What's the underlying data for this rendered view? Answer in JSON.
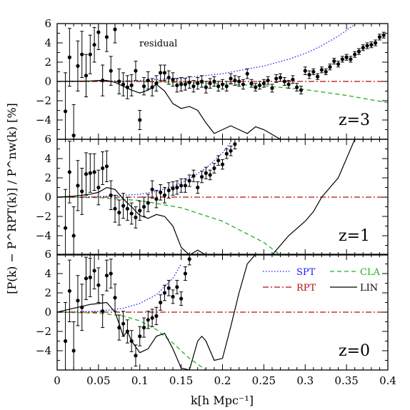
{
  "chart_data": {
    "type": "line",
    "ylabel": "[P(k) − P^RPT(k)] / P^nw(k) [%]",
    "xlabel": "k[h Mpc⁻¹]",
    "xlim": [
      0,
      0.4
    ],
    "ylim": [
      -6,
      6
    ],
    "x_ticks": [
      0,
      0.05,
      0.1,
      0.15,
      0.2,
      0.25,
      0.3,
      0.35,
      0.4
    ],
    "x_tick_labels": [
      "0",
      "0.05",
      "0.1",
      "0.15",
      "0.2",
      "0.25",
      "0.3",
      "0.35",
      "0.4"
    ],
    "y_ticks": [
      -4,
      -2,
      0,
      2,
      4,
      6
    ],
    "y_tick_labels_top": [
      "−4",
      "−2",
      "0",
      "2",
      "4",
      "6"
    ],
    "y_tick_labels": [
      "−4",
      "−2",
      "0",
      "2",
      "4"
    ],
    "annotation": "residual",
    "legend": [
      {
        "label": "SPT",
        "color": "#1a1aff",
        "style": "dotted"
      },
      {
        "label": "CLA",
        "color": "#22b022",
        "style": "dashed"
      },
      {
        "label": "RPT",
        "color": "#b01010",
        "style": "dashdot"
      },
      {
        "label": "LIN",
        "color": "#000000",
        "style": "solid"
      }
    ],
    "panels": [
      {
        "label": "z=3",
        "series": [
          {
            "name": "SPT",
            "color": "#1a1aff",
            "style": "dotted",
            "x": [
              0,
              0.05,
              0.1,
              0.15,
              0.2,
              0.25,
              0.28,
              0.3,
              0.32,
              0.34,
              0.36
            ],
            "y": [
              0,
              0.02,
              0.1,
              0.35,
              0.8,
              1.6,
              2.3,
              2.9,
              3.7,
              4.7,
              5.9
            ]
          },
          {
            "name": "CLA",
            "color": "#22b022",
            "style": "dashed",
            "x": [
              0,
              0.1,
              0.15,
              0.2,
              0.25,
              0.3,
              0.35,
              0.4
            ],
            "y": [
              0,
              -0.02,
              -0.1,
              -0.25,
              -0.45,
              -0.85,
              -1.45,
              -2.2
            ]
          },
          {
            "name": "RPT",
            "color": "#b01010",
            "style": "dashdot",
            "x": [
              0,
              0.4
            ],
            "y": [
              0,
              0
            ]
          },
          {
            "name": "LIN",
            "color": "#000000",
            "style": "solid",
            "x": [
              0,
              0.02,
              0.04,
              0.05,
              0.06,
              0.07,
              0.08,
              0.09,
              0.1,
              0.11,
              0.12,
              0.13,
              0.14,
              0.15,
              0.16,
              0.17,
              0.18,
              0.19,
              0.2,
              0.21,
              0.22,
              0.23,
              0.24,
              0.25,
              0.27,
              0.3,
              0.32
            ],
            "y": [
              0,
              0.02,
              0.05,
              0.1,
              0.1,
              -0.1,
              -0.5,
              -0.9,
              -1.2,
              -0.9,
              -0.3,
              -1.0,
              -2.3,
              -2.8,
              -2.6,
              -3.0,
              -4.3,
              -5.4,
              -5.0,
              -4.6,
              -5.0,
              -5.4,
              -4.7,
              -5.0,
              -6.0,
              -6.0,
              -6.0
            ]
          },
          {
            "name": "residual points",
            "color": "#000000",
            "style": "points",
            "x": [
              0.01,
              0.015,
              0.02,
              0.025,
              0.03,
              0.035,
              0.04,
              0.045,
              0.05,
              0.055,
              0.06,
              0.065,
              0.07,
              0.075,
              0.08,
              0.085,
              0.09,
              0.095,
              0.1,
              0.105,
              0.11,
              0.115,
              0.12,
              0.125,
              0.13,
              0.135,
              0.14,
              0.145,
              0.15,
              0.155,
              0.16,
              0.165,
              0.17,
              0.175,
              0.18,
              0.185,
              0.19,
              0.195,
              0.2,
              0.205,
              0.21,
              0.215,
              0.22,
              0.225,
              0.23,
              0.235,
              0.24,
              0.245,
              0.25,
              0.255,
              0.26,
              0.265,
              0.27,
              0.275,
              0.28,
              0.285,
              0.29,
              0.295,
              0.3,
              0.305,
              0.31,
              0.315,
              0.32,
              0.325,
              0.33,
              0.335,
              0.34,
              0.345,
              0.35,
              0.355,
              0.36,
              0.365,
              0.37,
              0.375,
              0.38,
              0.385,
              0.39,
              0.395
            ],
            "y": [
              -3.1,
              2.5,
              -5.6,
              1.6,
              2.8,
              0.6,
              2.8,
              3.8,
              5.1,
              0.1,
              4.6,
              1.1,
              5.4,
              0.0,
              -0.3,
              -0.6,
              -0.4,
              1.1,
              -4.0,
              -0.5,
              0.1,
              -0.6,
              -0.2,
              0.9,
              0.9,
              0.4,
              0.2,
              -0.4,
              -0.3,
              -0.3,
              -0.1,
              -0.5,
              -0.2,
              0.0,
              -0.6,
              -0.2,
              0.0,
              -0.5,
              -0.3,
              -0.5,
              0.3,
              0.1,
              0.0,
              -0.3,
              0.8,
              -0.2,
              -0.6,
              -0.4,
              -0.2,
              0.1,
              -0.7,
              0.3,
              0.4,
              0.0,
              -0.3,
              0.2,
              -0.6,
              -0.9,
              1.1,
              0.7,
              1.0,
              0.5,
              1.2,
              1.0,
              1.5,
              2.1,
              1.8,
              2.3,
              2.5,
              2.3,
              2.8,
              3.1,
              3.5,
              3.7,
              3.8,
              4.0,
              4.6,
              4.8
            ],
            "err": [
              4.0,
              3.0,
              3.2,
              2.6,
              2.4,
              2.2,
              2.0,
              1.8,
              1.8,
              1.6,
              1.5,
              1.5,
              1.4,
              1.3,
              1.2,
              1.2,
              1.1,
              1.0,
              1.0,
              0.9,
              0.9,
              0.9,
              0.8,
              0.8,
              0.8,
              0.7,
              0.7,
              0.7,
              0.7,
              0.6,
              0.6,
              0.6,
              0.6,
              0.6,
              0.6,
              0.5,
              0.5,
              0.5,
              0.5,
              0.5,
              0.5,
              0.5,
              0.5,
              0.5,
              0.5,
              0.4,
              0.4,
              0.4,
              0.4,
              0.4,
              0.4,
              0.4,
              0.4,
              0.4,
              0.4,
              0.4,
              0.4,
              0.4,
              0.4,
              0.4,
              0.3,
              0.3,
              0.3,
              0.3,
              0.3,
              0.3,
              0.3,
              0.3,
              0.3,
              0.3,
              0.3,
              0.3,
              0.3,
              0.3,
              0.3,
              0.3,
              0.3,
              0.3
            ]
          }
        ]
      },
      {
        "label": "z=1",
        "series": [
          {
            "name": "SPT",
            "color": "#1a1aff",
            "style": "dotted",
            "x": [
              0,
              0.05,
              0.1,
              0.12,
              0.14,
              0.16,
              0.18,
              0.2,
              0.21
            ],
            "y": [
              0,
              0.05,
              0.3,
              0.6,
              1.1,
              1.9,
              3.0,
              4.6,
              5.7
            ]
          },
          {
            "name": "CLA",
            "color": "#22b022",
            "style": "dashed",
            "x": [
              0,
              0.05,
              0.1,
              0.15,
              0.2,
              0.25,
              0.27
            ],
            "y": [
              0,
              -0.05,
              -0.35,
              -1.1,
              -2.5,
              -4.7,
              -6.0
            ]
          },
          {
            "name": "RPT",
            "color": "#b01010",
            "style": "dashdot",
            "x": [
              0,
              0.4
            ],
            "y": [
              0,
              0
            ]
          },
          {
            "name": "LIN",
            "color": "#000000",
            "style": "solid",
            "x": [
              0,
              0.02,
              0.04,
              0.05,
              0.06,
              0.07,
              0.08,
              0.09,
              0.1,
              0.11,
              0.12,
              0.13,
              0.14,
              0.15,
              0.16,
              0.17,
              0.18,
              0.26,
              0.28,
              0.3,
              0.31,
              0.32,
              0.33,
              0.34,
              0.35,
              0.36
            ],
            "y": [
              0,
              0.1,
              0.3,
              0.5,
              1.0,
              0.8,
              -0.2,
              -1.0,
              -1.9,
              -2.2,
              -1.8,
              -2.0,
              -3.0,
              -5.2,
              -6.0,
              -5.5,
              -6.0,
              -6.0,
              -4.0,
              -2.5,
              -1.5,
              0.0,
              1.0,
              2.0,
              4.0,
              6.0
            ]
          },
          {
            "name": "residual points",
            "color": "#000000",
            "style": "points",
            "x": [
              0.01,
              0.015,
              0.02,
              0.025,
              0.03,
              0.035,
              0.04,
              0.045,
              0.05,
              0.055,
              0.06,
              0.065,
              0.07,
              0.075,
              0.08,
              0.085,
              0.09,
              0.095,
              0.1,
              0.105,
              0.11,
              0.115,
              0.12,
              0.125,
              0.13,
              0.135,
              0.14,
              0.145,
              0.15,
              0.155,
              0.16,
              0.165,
              0.17,
              0.175,
              0.18,
              0.185,
              0.19,
              0.195,
              0.2,
              0.205,
              0.21,
              0.215
            ],
            "y": [
              -3.2,
              2.6,
              -4.0,
              1.2,
              0.6,
              2.4,
              2.5,
              2.6,
              1.0,
              3.0,
              3.2,
              0.2,
              -1.2,
              -1.6,
              -0.9,
              -1.2,
              -1.7,
              -2.1,
              -1.4,
              -1.0,
              -0.6,
              0.8,
              -0.2,
              0.5,
              0.2,
              0.7,
              0.9,
              1.0,
              1.2,
              1.2,
              1.7,
              2.2,
              1.0,
              2.1,
              2.5,
              2.3,
              3.0,
              3.8,
              3.4,
              4.5,
              4.8,
              5.5
            ],
            "err": [
              4.0,
              3.2,
              3.0,
              2.6,
              2.4,
              2.2,
              2.0,
              1.9,
              1.8,
              1.7,
              1.6,
              1.5,
              1.4,
              1.3,
              1.3,
              1.2,
              1.1,
              1.1,
              1.0,
              1.0,
              0.9,
              0.9,
              0.9,
              0.8,
              0.8,
              0.8,
              0.7,
              0.7,
              0.7,
              0.7,
              0.6,
              0.6,
              0.6,
              0.6,
              0.6,
              0.5,
              0.5,
              0.5,
              0.5,
              0.5,
              0.5,
              0.5
            ]
          }
        ]
      },
      {
        "label": "z=0",
        "series": [
          {
            "name": "SPT",
            "color": "#1a1aff",
            "style": "dotted",
            "x": [
              0,
              0.05,
              0.08,
              0.1,
              0.12,
              0.14,
              0.15
            ],
            "y": [
              0,
              0.1,
              0.4,
              0.9,
              1.8,
              3.5,
              5.0
            ]
          },
          {
            "name": "CLA",
            "color": "#22b022",
            "style": "dashed",
            "x": [
              0,
              0.05,
              0.08,
              0.1,
              0.12,
              0.14,
              0.16,
              0.18
            ],
            "y": [
              0,
              -0.1,
              -0.4,
              -0.9,
              -1.8,
              -3.2,
              -4.8,
              -6.0
            ]
          },
          {
            "name": "RPT",
            "color": "#b01010",
            "style": "dashdot",
            "x": [
              0,
              0.4
            ],
            "y": [
              0,
              0
            ]
          },
          {
            "name": "LIN",
            "color": "#000000",
            "style": "solid",
            "x": [
              0,
              0.02,
              0.04,
              0.05,
              0.06,
              0.065,
              0.07,
              0.075,
              0.08,
              0.085,
              0.09,
              0.1,
              0.11,
              0.12,
              0.13,
              0.14,
              0.15,
              0.16,
              0.17,
              0.175,
              0.18,
              0.19,
              0.2,
              0.21,
              0.22,
              0.23,
              0.24
            ],
            "y": [
              0,
              0.4,
              0.8,
              0.9,
              1.0,
              0.5,
              0.0,
              -1.2,
              -2.5,
              -2.0,
              -3.0,
              -4.2,
              -3.8,
              -2.5,
              -2.2,
              -3.8,
              -5.8,
              -6.0,
              -3.0,
              -2.5,
              -3.0,
              -5.0,
              -4.8,
              -1.5,
              2.0,
              5.0,
              6.0
            ]
          },
          {
            "name": "residual points",
            "color": "#000000",
            "style": "points",
            "x": [
              0.01,
              0.015,
              0.02,
              0.025,
              0.03,
              0.035,
              0.04,
              0.045,
              0.05,
              0.055,
              0.06,
              0.065,
              0.07,
              0.075,
              0.08,
              0.085,
              0.09,
              0.095,
              0.1,
              0.105,
              0.11,
              0.115,
              0.12,
              0.125,
              0.13,
              0.135,
              0.14,
              0.145,
              0.15,
              0.155,
              0.16
            ],
            "y": [
              -3.0,
              2.2,
              -4.0,
              1.2,
              0.5,
              3.5,
              3.6,
              4.3,
              2.8,
              0.1,
              3.8,
              4.0,
              1.5,
              -1.6,
              -1.2,
              -2.0,
              -3.0,
              -4.5,
              -2.5,
              -1.6,
              -0.8,
              -0.6,
              -0.4,
              1.0,
              2.0,
              2.5,
              1.6,
              2.6,
              1.4,
              4.0,
              5.5
            ],
            "err": [
              4.0,
              3.2,
              3.0,
              2.6,
              2.4,
              2.2,
              2.0,
              1.9,
              1.8,
              1.7,
              1.6,
              1.5,
              1.4,
              1.3,
              1.3,
              1.2,
              1.1,
              1.1,
              1.0,
              1.0,
              0.9,
              0.9,
              0.9,
              0.8,
              0.8,
              0.8,
              0.7,
              0.7,
              0.7,
              0.7,
              0.6
            ]
          }
        ]
      }
    ]
  }
}
